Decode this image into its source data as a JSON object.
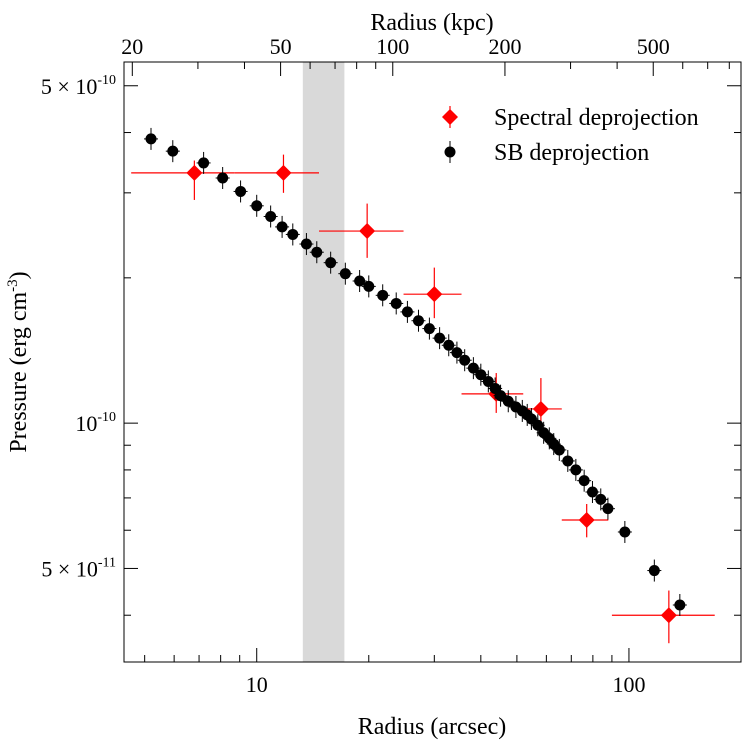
{
  "chart_data": {
    "type": "scatter",
    "xscale": "log",
    "yscale": "log",
    "xlabel": "Radius (arcsec)",
    "ylabel": "Pressure (erg cm",
    "ylabel_sup": "-3",
    "ylabel_end": ")",
    "x2label": "Radius (kpc)",
    "xlim": [
      4.4,
      200
    ],
    "ylim": [
      3.2e-11,
      5.6e-10
    ],
    "x2lim": [
      19.0,
      860
    ],
    "shaded_band": [
      13.3,
      17.2
    ],
    "shaded_color": "#d9d9d9",
    "x_ticks": [
      {
        "value": 10,
        "label": "10"
      },
      {
        "value": 100,
        "label": "100"
      }
    ],
    "x2_ticks": [
      {
        "value": 20,
        "label": "20"
      },
      {
        "value": 50,
        "label": "50"
      },
      {
        "value": 100,
        "label": "100"
      },
      {
        "value": 200,
        "label": "200"
      },
      {
        "value": 500,
        "label": "500"
      }
    ],
    "y_ticks": [
      {
        "value": 5e-10,
        "label_mant": "5 × 10",
        "label_exp": "-10"
      },
      {
        "value": 1e-10,
        "label_mant": "10",
        "label_exp": "-10"
      },
      {
        "value": 5e-11,
        "label_mant": "5 × 10",
        "label_exp": "-11"
      }
    ],
    "legend_position": "top-right",
    "series": [
      {
        "name": "Spectral deprojection",
        "marker": "diamond",
        "color": "#ff0000",
        "points": [
          {
            "x": 6.8,
            "xlo": 4.6,
            "xhi": 8.7,
            "y": 3.3e-10,
            "ylo": 2.9e-10,
            "yhi": 3.5e-10
          },
          {
            "x": 11.8,
            "xlo": 8.7,
            "xhi": 14.7,
            "y": 3.3e-10,
            "ylo": 3e-10,
            "yhi": 3.6e-10
          },
          {
            "x": 19.8,
            "xlo": 14.7,
            "xhi": 24.8,
            "y": 2.5e-10,
            "ylo": 2.2e-10,
            "yhi": 2.85e-10
          },
          {
            "x": 30.0,
            "xlo": 24.8,
            "xhi": 35.5,
            "y": 1.85e-10,
            "ylo": 1.65e-10,
            "yhi": 2.1e-10
          },
          {
            "x": 44.0,
            "xlo": 35.5,
            "xhi": 52.0,
            "y": 1.15e-10,
            "ylo": 1.05e-10,
            "yhi": 1.27e-10
          },
          {
            "x": 58.0,
            "xlo": 52.0,
            "xhi": 66.0,
            "y": 1.07e-10,
            "ylo": 9.6e-11,
            "yhi": 1.24e-10
          },
          {
            "x": 77.0,
            "xlo": 66.0,
            "xhi": 88.0,
            "y": 6.3e-11,
            "ylo": 5.8e-11,
            "yhi": 6.8e-11
          },
          {
            "x": 128.0,
            "xlo": 90.0,
            "xhi": 170.0,
            "y": 4e-11,
            "ylo": 3.5e-11,
            "yhi": 4.5e-11
          }
        ]
      },
      {
        "name": "SB deprojection",
        "marker": "circle",
        "color": "#000000",
        "points": [
          {
            "x": 5.2,
            "y": 3.88e-10
          },
          {
            "x": 5.95,
            "y": 3.66e-10
          },
          {
            "x": 7.2,
            "y": 3.46e-10
          },
          {
            "x": 8.1,
            "y": 3.22e-10
          },
          {
            "x": 9.05,
            "y": 3.02e-10
          },
          {
            "x": 10.0,
            "y": 2.82e-10
          },
          {
            "x": 10.9,
            "y": 2.68e-10
          },
          {
            "x": 11.7,
            "y": 2.55e-10
          },
          {
            "x": 12.5,
            "y": 2.46e-10
          },
          {
            "x": 13.6,
            "y": 2.35e-10
          },
          {
            "x": 14.5,
            "y": 2.26e-10
          },
          {
            "x": 15.8,
            "y": 2.15e-10
          },
          {
            "x": 17.3,
            "y": 2.04e-10
          },
          {
            "x": 18.9,
            "y": 1.97e-10
          },
          {
            "x": 20.0,
            "y": 1.92e-10
          },
          {
            "x": 21.8,
            "y": 1.84e-10
          },
          {
            "x": 23.7,
            "y": 1.77e-10
          },
          {
            "x": 25.4,
            "y": 1.7e-10
          },
          {
            "x": 27.2,
            "y": 1.63e-10
          },
          {
            "x": 29.1,
            "y": 1.57e-10
          },
          {
            "x": 31.0,
            "y": 1.5e-10
          },
          {
            "x": 32.8,
            "y": 1.45e-10
          },
          {
            "x": 34.5,
            "y": 1.4e-10
          },
          {
            "x": 36.2,
            "y": 1.35e-10
          },
          {
            "x": 38.2,
            "y": 1.3e-10
          },
          {
            "x": 40.0,
            "y": 1.26e-10
          },
          {
            "x": 41.9,
            "y": 1.22e-10
          },
          {
            "x": 43.7,
            "y": 1.18e-10
          },
          {
            "x": 45.2,
            "y": 1.14e-10
          },
          {
            "x": 47.4,
            "y": 1.11e-10
          },
          {
            "x": 49.7,
            "y": 1.08e-10
          },
          {
            "x": 51.7,
            "y": 1.06e-10
          },
          {
            "x": 53.3,
            "y": 1.04e-10
          },
          {
            "x": 54.7,
            "y": 1.02e-10
          },
          {
            "x": 56.9,
            "y": 9.9e-11
          },
          {
            "x": 59.0,
            "y": 9.55e-11
          },
          {
            "x": 61.1,
            "y": 9.3e-11
          },
          {
            "x": 62.8,
            "y": 9.05e-11
          },
          {
            "x": 65.0,
            "y": 8.8e-11
          },
          {
            "x": 68.5,
            "y": 8.35e-11
          },
          {
            "x": 72.0,
            "y": 8e-11
          },
          {
            "x": 75.8,
            "y": 7.6e-11
          },
          {
            "x": 79.8,
            "y": 7.2e-11
          },
          {
            "x": 84.0,
            "y": 6.95e-11
          },
          {
            "x": 87.8,
            "y": 6.65e-11
          },
          {
            "x": 97.5,
            "y": 5.95e-11
          },
          {
            "x": 117.0,
            "y": 4.95e-11
          },
          {
            "x": 137.0,
            "y": 4.2e-11
          }
        ]
      }
    ]
  }
}
